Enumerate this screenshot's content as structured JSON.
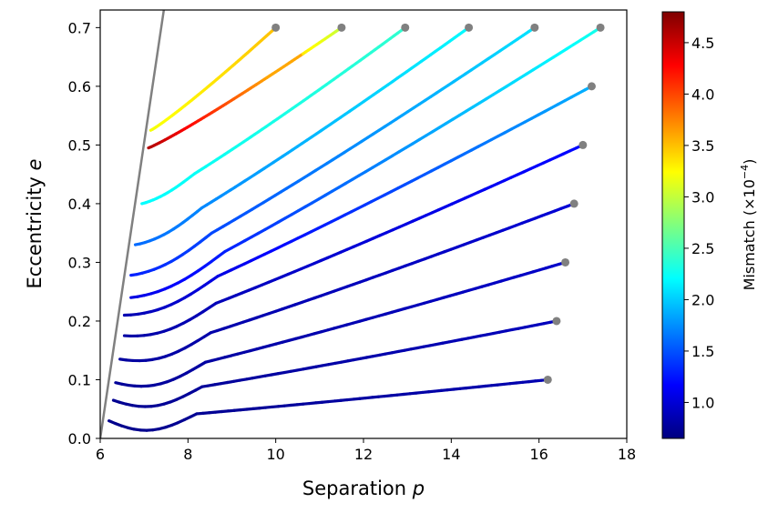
{
  "chart_data": {
    "type": "line",
    "xlabel": "Separation",
    "xlabel_var": "p",
    "ylabel": "Eccentricity",
    "ylabel_var": "e",
    "xlim": [
      6,
      18
    ],
    "ylim": [
      0,
      0.73
    ],
    "xticks": [
      "6",
      "8",
      "10",
      "12",
      "14",
      "16",
      "18"
    ],
    "yticks": [
      "0.0",
      "0.1",
      "0.2",
      "0.3",
      "0.4",
      "0.5",
      "0.6",
      "0.7"
    ],
    "grid": false,
    "colorbar": {
      "label": "Mismatch (×10",
      "label_exp": "−4",
      "label_close": ")",
      "range": [
        0.65,
        4.8
      ],
      "ticks": [
        "1.0",
        "1.5",
        "2.0",
        "2.5",
        "3.0",
        "3.5",
        "4.0",
        "4.5"
      ],
      "colormap": "jet"
    },
    "separatrix": {
      "color": "#808080",
      "points": [
        [
          6.0,
          0.0
        ],
        [
          7.45,
          0.73
        ]
      ]
    },
    "endpoint_color": "#808080",
    "series": [
      {
        "start": [
          6.2,
          0.03
        ],
        "end": [
          16.2,
          0.1
        ],
        "m_start": 0.7,
        "m_end": 0.85
      },
      {
        "start": [
          6.3,
          0.065
        ],
        "end": [
          16.4,
          0.2
        ],
        "m_start": 0.72,
        "m_end": 0.9
      },
      {
        "start": [
          6.35,
          0.095
        ],
        "end": [
          16.6,
          0.3
        ],
        "m_start": 0.75,
        "m_end": 0.95
      },
      {
        "start": [
          6.45,
          0.135
        ],
        "end": [
          16.8,
          0.4
        ],
        "m_start": 0.78,
        "m_end": 1.0
      },
      {
        "start": [
          6.55,
          0.175
        ],
        "end": [
          17.0,
          0.5
        ],
        "m_start": 0.8,
        "m_end": 1.2
      },
      {
        "start": [
          6.55,
          0.21
        ],
        "end": [
          17.2,
          0.6
        ],
        "m_start": 0.85,
        "m_end": 1.9
      },
      {
        "start": [
          6.7,
          0.24
        ],
        "end": [
          17.4,
          0.7
        ],
        "m_start": 1.05,
        "m_end": 2.3
      },
      {
        "start": [
          6.7,
          0.278
        ],
        "end": [
          15.9,
          0.7
        ],
        "m_start": 1.3,
        "m_end": 2.1
      },
      {
        "start": [
          6.8,
          0.33
        ],
        "end": [
          14.4,
          0.7
        ],
        "m_start": 1.6,
        "m_end": 2.2
      },
      {
        "start": [
          6.95,
          0.4
        ],
        "end": [
          12.95,
          0.7
        ],
        "m_start": 2.2,
        "m_end": 2.4
      },
      {
        "start": [
          7.1,
          0.495
        ],
        "end": [
          11.5,
          0.7
        ],
        "m_start": 4.6,
        "m_end": 3.0
      },
      {
        "start": [
          7.15,
          0.525
        ],
        "end": [
          10.0,
          0.7
        ],
        "m_start": 3.2,
        "m_end": 3.5
      }
    ]
  }
}
